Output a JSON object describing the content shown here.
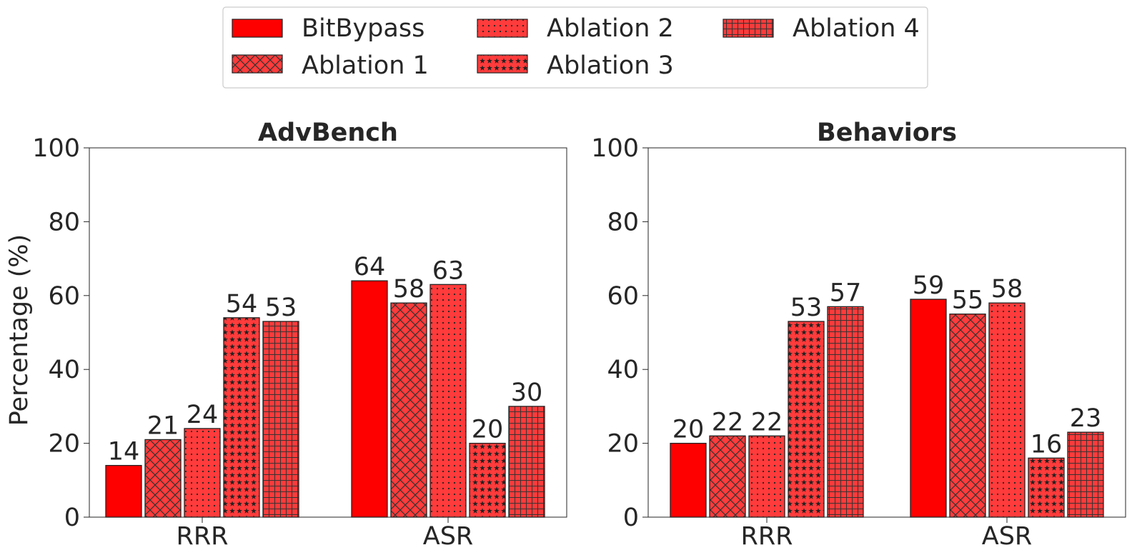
{
  "ylabel": "Percentage (%)",
  "legend": {
    "placement": "top-center",
    "entries": [
      {
        "label": "BitBypass",
        "pattern": "solid"
      },
      {
        "label": "Ablation 1",
        "pattern": "crosshatch"
      },
      {
        "label": "Ablation 2",
        "pattern": "dots"
      },
      {
        "label": "Ablation 3",
        "pattern": "stars"
      },
      {
        "label": "Ablation 4",
        "pattern": "grid"
      }
    ]
  },
  "colors": {
    "bitbypass": "#ff0000",
    "ablation": "#ff3b3b",
    "hatch": "#333333",
    "edge": "#222222"
  },
  "chart_data": [
    {
      "type": "bar",
      "title": "AdvBench",
      "categories": [
        "RRR",
        "ASR"
      ],
      "ylim": [
        0,
        100
      ],
      "yticks": [
        0,
        20,
        40,
        60,
        80,
        100
      ],
      "grid": false,
      "series": [
        {
          "name": "BitBypass",
          "values": [
            14,
            64
          ]
        },
        {
          "name": "Ablation 1",
          "values": [
            21,
            58
          ]
        },
        {
          "name": "Ablation 2",
          "values": [
            24,
            63
          ]
        },
        {
          "name": "Ablation 3",
          "values": [
            54,
            20
          ]
        },
        {
          "name": "Ablation 4",
          "values": [
            53,
            30
          ]
        }
      ]
    },
    {
      "type": "bar",
      "title": "Behaviors",
      "categories": [
        "RRR",
        "ASR"
      ],
      "ylim": [
        0,
        100
      ],
      "yticks": [
        0,
        20,
        40,
        60,
        80,
        100
      ],
      "grid": false,
      "series": [
        {
          "name": "BitBypass",
          "values": [
            20,
            59
          ]
        },
        {
          "name": "Ablation 1",
          "values": [
            22,
            55
          ]
        },
        {
          "name": "Ablation 2",
          "values": [
            22,
            58
          ]
        },
        {
          "name": "Ablation 3",
          "values": [
            53,
            16
          ]
        },
        {
          "name": "Ablation 4",
          "values": [
            57,
            23
          ]
        }
      ]
    }
  ]
}
